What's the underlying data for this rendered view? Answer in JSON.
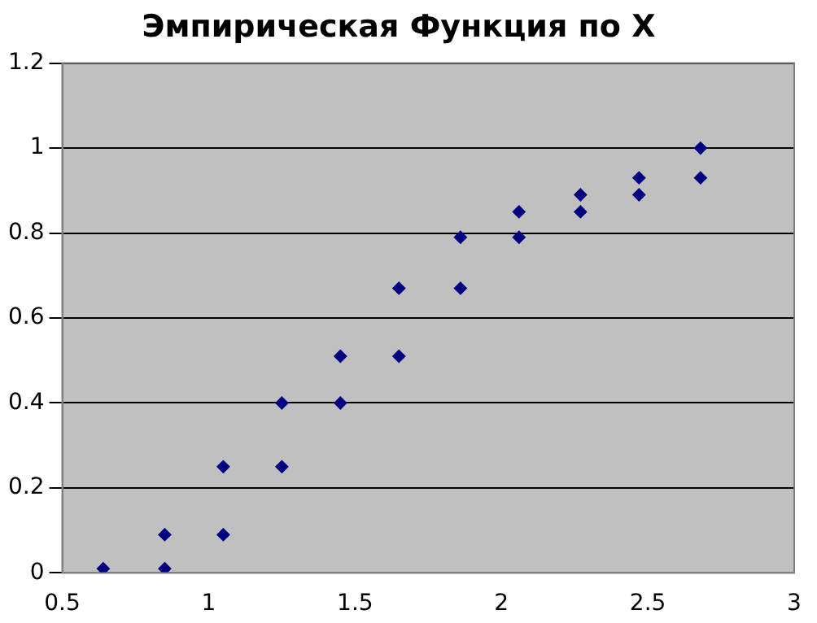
{
  "chart_data": {
    "type": "scatter",
    "title": "Эмпирическая Функция по X",
    "x": [
      0.64,
      0.85,
      0.85,
      1.05,
      1.05,
      1.25,
      1.25,
      1.45,
      1.45,
      1.65,
      1.65,
      1.86,
      1.86,
      2.06,
      2.06,
      2.27,
      2.27,
      2.47,
      2.47,
      2.68,
      2.68
    ],
    "values": [
      0.01,
      0.01,
      0.09,
      0.09,
      0.25,
      0.25,
      0.4,
      0.4,
      0.51,
      0.51,
      0.67,
      0.67,
      0.79,
      0.79,
      0.85,
      0.85,
      0.89,
      0.89,
      0.93,
      0.93,
      1.0
    ],
    "color": "#000080",
    "marker": "diamond",
    "grid": "y",
    "legend": false,
    "xlim": [
      0.5,
      3
    ],
    "xticks": [
      0.5,
      1,
      1.5,
      2,
      2.5,
      3
    ],
    "ylim": [
      0,
      1.2
    ],
    "yticks": [
      0,
      0.2,
      0.4,
      0.6,
      0.8,
      1,
      1.2
    ]
  }
}
